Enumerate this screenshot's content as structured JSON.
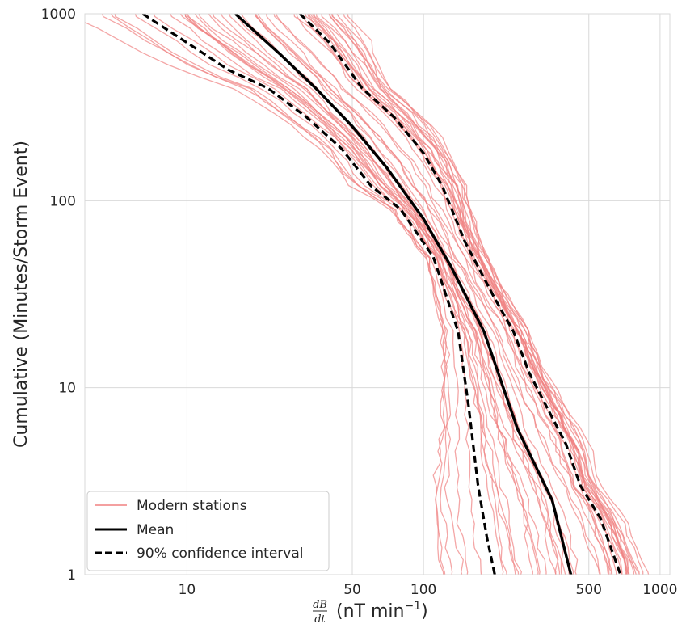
{
  "chart_data": {
    "type": "line",
    "title": "",
    "xlabel": {
      "fraction_numerator": "dB",
      "fraction_denominator": "dt",
      "unit_text": "(nT min",
      "unit_exponent": "−1",
      "unit_close": ")"
    },
    "ylabel": "Cumulative (Minutes/Storm Event)",
    "x_scale": "log",
    "y_scale": "log",
    "xlim": [
      3.7,
      1100
    ],
    "ylim": [
      1,
      1000
    ],
    "x_ticks": [
      10,
      50,
      100,
      500,
      1000
    ],
    "x_tick_labels": [
      "10",
      "50",
      "100",
      "500",
      "1000"
    ],
    "y_ticks": [
      1,
      10,
      100,
      1000
    ],
    "y_tick_labels": [
      "1",
      "10",
      "100",
      "1000"
    ],
    "grid": true,
    "legend": {
      "position": "lower-left",
      "entries": [
        {
          "label": "Modern stations",
          "style": "thin-red"
        },
        {
          "label": "Mean",
          "style": "thick-black"
        },
        {
          "label": "90% confidence interval",
          "style": "dashed-black"
        }
      ]
    },
    "colors": {
      "stations": "#f08080",
      "mean": "#000000",
      "confidence": "#000000",
      "grid": "#d9d9d9",
      "frame": "#d9d9d9"
    },
    "series": [
      {
        "name": "Mean",
        "x": [
          16,
          25,
          35,
          50,
          70,
          100,
          130,
          180,
          250,
          350,
          420
        ],
        "y": [
          1000,
          600,
          400,
          250,
          150,
          80,
          45,
          20,
          6,
          2.5,
          1
        ]
      },
      {
        "name": "90% confidence interval",
        "bound": "lower",
        "x": [
          6.5,
          10,
          15,
          22,
          32,
          45,
          60,
          80,
          110,
          140,
          155,
          170,
          185,
          200
        ],
        "y": [
          1000,
          700,
          500,
          400,
          280,
          190,
          120,
          90,
          50,
          20,
          8,
          3,
          1.6,
          1
        ]
      },
      {
        "name": "90% confidence interval",
        "bound": "upper",
        "x": [
          30,
          40,
          55,
          75,
          100,
          120,
          150,
          200,
          240,
          280,
          330,
          400,
          460,
          560,
          680
        ],
        "y": [
          1000,
          700,
          400,
          280,
          180,
          120,
          60,
          30,
          20,
          12,
          8,
          5,
          3,
          2,
          1
        ]
      }
    ],
    "station_series_count": 45
  }
}
